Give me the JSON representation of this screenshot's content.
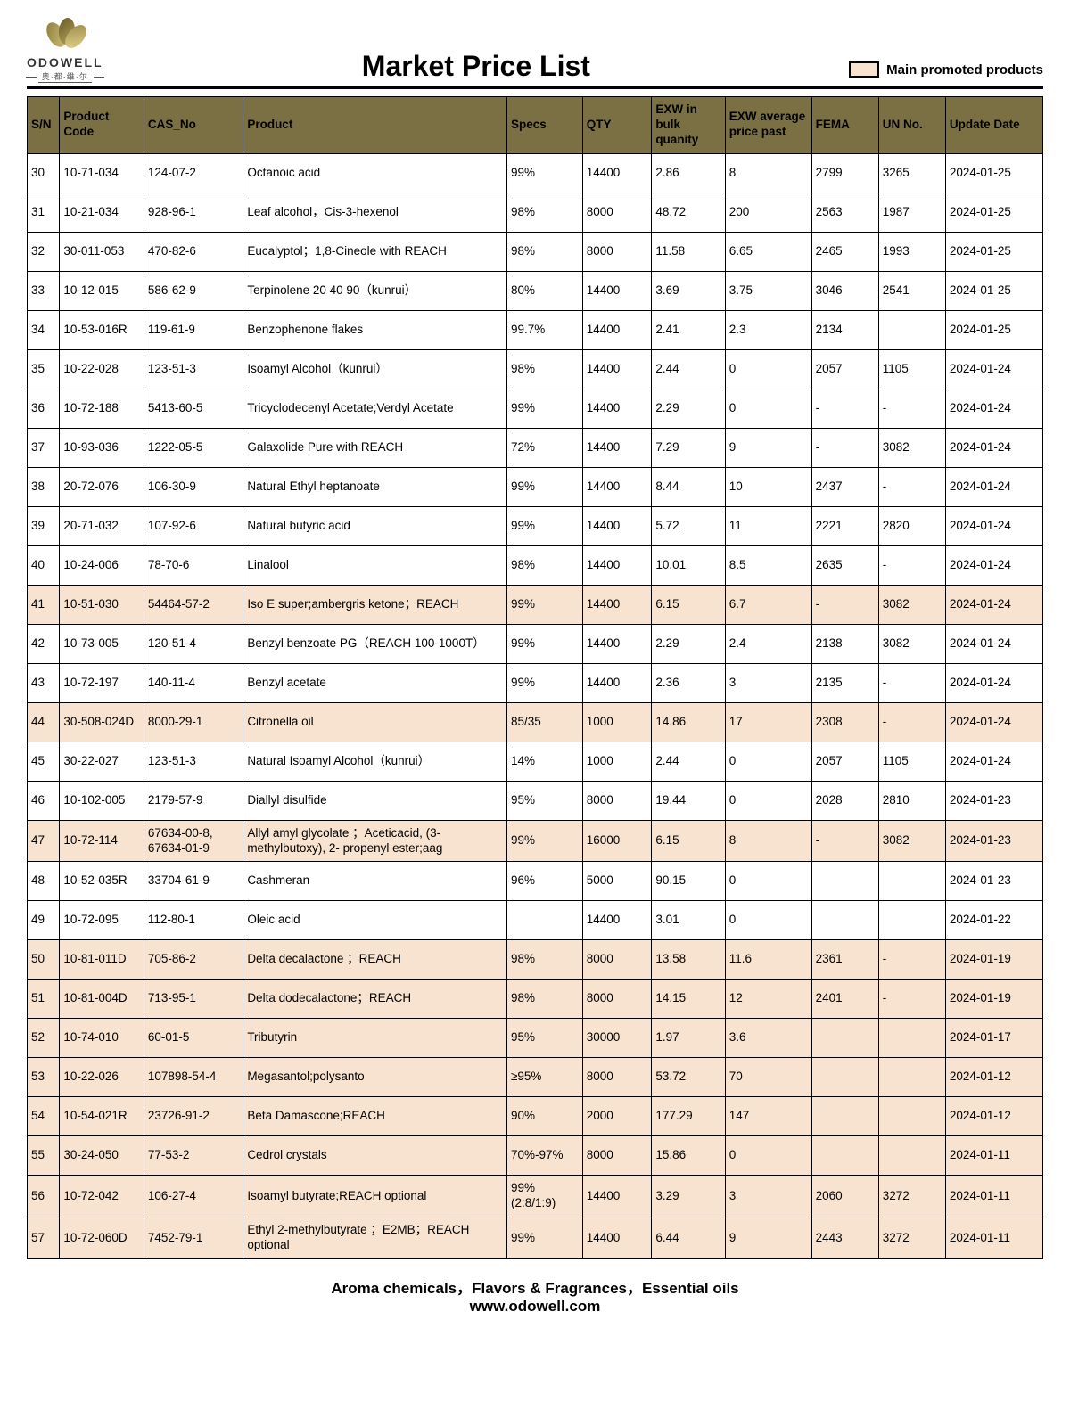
{
  "brand": {
    "name": "ODOWELL",
    "sub": "奥·都·维·尔"
  },
  "title": "Market Price List",
  "legend": "Main promoted products",
  "footer": {
    "line1": "Aroma chemicals，Flavors & Fragrances，Essential oils",
    "line2": "www.odowell.com"
  },
  "colors": {
    "header_bg": "#7a7043",
    "promoted_bg": "#f8e3d0",
    "border": "#000000"
  },
  "columns": [
    {
      "key": "sn",
      "label": "S/N",
      "width": "30"
    },
    {
      "key": "code",
      "label": "Product Code",
      "width": "78"
    },
    {
      "key": "cas",
      "label": "CAS_No",
      "width": "92"
    },
    {
      "key": "product",
      "label": "Product",
      "width": "244"
    },
    {
      "key": "specs",
      "label": "Specs",
      "width": "70"
    },
    {
      "key": "qty",
      "label": "QTY",
      "width": "64"
    },
    {
      "key": "exw_bulk",
      "label": "EXW in bulk quanity",
      "width": "68"
    },
    {
      "key": "exw_avg",
      "label": "EXW average price past",
      "width": "80"
    },
    {
      "key": "fema",
      "label": "FEMA",
      "width": "62"
    },
    {
      "key": "un",
      "label": "UN No.",
      "width": "62"
    },
    {
      "key": "date",
      "label": "Update Date",
      "width": "90"
    }
  ],
  "rows": [
    {
      "sn": "30",
      "code": "10-71-034",
      "cas": "124-07-2",
      "product": "Octanoic acid",
      "specs": "99%",
      "qty": "14400",
      "exw_bulk": "2.86",
      "exw_avg": "8",
      "fema": "2799",
      "un": "3265",
      "date": "2024-01-25",
      "promoted": false
    },
    {
      "sn": "31",
      "code": "10-21-034",
      "cas": "928-96-1",
      "product": "Leaf alcohol，Cis-3-hexenol",
      "specs": "98%",
      "qty": "8000",
      "exw_bulk": "48.72",
      "exw_avg": "200",
      "fema": "2563",
      "un": "1987",
      "date": "2024-01-25",
      "promoted": false
    },
    {
      "sn": "32",
      "code": "30-011-053",
      "cas": "470-82-6",
      "product": "Eucalyptol；1,8-Cineole with REACH",
      "specs": "98%",
      "qty": "8000",
      "exw_bulk": "11.58",
      "exw_avg": "6.65",
      "fema": "2465",
      "un": "1993",
      "date": "2024-01-25",
      "promoted": false
    },
    {
      "sn": "33",
      "code": "10-12-015",
      "cas": "586-62-9",
      "product": "Terpinolene 20 40 90（kunrui）",
      "specs": "80%",
      "qty": "14400",
      "exw_bulk": "3.69",
      "exw_avg": "3.75",
      "fema": "3046",
      "un": "2541",
      "date": "2024-01-25",
      "promoted": false
    },
    {
      "sn": "34",
      "code": "10-53-016R",
      "cas": "119-61-9",
      "product": "Benzophenone flakes",
      "specs": "99.7%",
      "qty": "14400",
      "exw_bulk": "2.41",
      "exw_avg": "2.3",
      "fema": "2134",
      "un": "",
      "date": "2024-01-25",
      "promoted": false
    },
    {
      "sn": "35",
      "code": "10-22-028",
      "cas": "123-51-3",
      "product": "Isoamyl Alcohol（kunrui）",
      "specs": "98%",
      "qty": "14400",
      "exw_bulk": "2.44",
      "exw_avg": "0",
      "fema": "2057",
      "un": "1105",
      "date": "2024-01-24",
      "promoted": false
    },
    {
      "sn": "36",
      "code": "10-72-188",
      "cas": "5413-60-5",
      "product": "Tricyclodecenyl Acetate;Verdyl Acetate",
      "specs": "99%",
      "qty": "14400",
      "exw_bulk": "2.29",
      "exw_avg": "0",
      "fema": "-",
      "un": "-",
      "date": "2024-01-24",
      "promoted": false
    },
    {
      "sn": "37",
      "code": "10-93-036",
      "cas": "1222-05-5",
      "product": "Galaxolide Pure with REACH",
      "specs": "72%",
      "qty": "14400",
      "exw_bulk": "7.29",
      "exw_avg": "9",
      "fema": "-",
      "un": "3082",
      "date": "2024-01-24",
      "promoted": false
    },
    {
      "sn": "38",
      "code": "20-72-076",
      "cas": "106-30-9",
      "product": "Natural Ethyl heptanoate",
      "specs": "99%",
      "qty": "14400",
      "exw_bulk": "8.44",
      "exw_avg": "10",
      "fema": "2437",
      "un": "-",
      "date": "2024-01-24",
      "promoted": false
    },
    {
      "sn": "39",
      "code": "20-71-032",
      "cas": "107-92-6",
      "product": "Natural butyric acid",
      "specs": "99%",
      "qty": "14400",
      "exw_bulk": "5.72",
      "exw_avg": "11",
      "fema": "2221",
      "un": "2820",
      "date": "2024-01-24",
      "promoted": false
    },
    {
      "sn": "40",
      "code": "10-24-006",
      "cas": "78-70-6",
      "product": "Linalool",
      "specs": "98%",
      "qty": "14400",
      "exw_bulk": "10.01",
      "exw_avg": "8.5",
      "fema": "2635",
      "un": "-",
      "date": "2024-01-24",
      "promoted": false
    },
    {
      "sn": "41",
      "code": "10-51-030",
      "cas": "54464-57-2",
      "product": "Iso E super;ambergris ketone；REACH",
      "specs": "99%",
      "qty": "14400",
      "exw_bulk": "6.15",
      "exw_avg": "6.7",
      "fema": "-",
      "un": "3082",
      "date": "2024-01-24",
      "promoted": true
    },
    {
      "sn": "42",
      "code": "10-73-005",
      "cas": "120-51-4",
      "product": "Benzyl benzoate PG（REACH 100-1000T）",
      "specs": "99%",
      "qty": "14400",
      "exw_bulk": "2.29",
      "exw_avg": "2.4",
      "fema": "2138",
      "un": "3082",
      "date": "2024-01-24",
      "promoted": false
    },
    {
      "sn": "43",
      "code": "10-72-197",
      "cas": "140-11-4",
      "product": "Benzyl acetate",
      "specs": "99%",
      "qty": "14400",
      "exw_bulk": "2.36",
      "exw_avg": "3",
      "fema": "2135",
      "un": "-",
      "date": "2024-01-24",
      "promoted": false
    },
    {
      "sn": "44",
      "code": "30-508-024D",
      "cas": "8000-29-1",
      "product": "Citronella oil",
      "specs": "85/35",
      "qty": "1000",
      "exw_bulk": "14.86",
      "exw_avg": "17",
      "fema": "2308",
      "un": "-",
      "date": "2024-01-24",
      "promoted": true
    },
    {
      "sn": "45",
      "code": "30-22-027",
      "cas": "123-51-3",
      "product": "Natural Isoamyl Alcohol（kunrui）",
      "specs": "14%",
      "qty": "1000",
      "exw_bulk": "2.44",
      "exw_avg": "0",
      "fema": "2057",
      "un": "1105",
      "date": "2024-01-24",
      "promoted": false
    },
    {
      "sn": "46",
      "code": "10-102-005",
      "cas": "2179-57-9",
      "product": "Diallyl disulfide",
      "specs": "95%",
      "qty": "8000",
      "exw_bulk": "19.44",
      "exw_avg": "0",
      "fema": "2028",
      "un": "2810",
      "date": "2024-01-23",
      "promoted": false
    },
    {
      "sn": "47",
      "code": "10-72-114",
      "cas": "67634-00-8, 67634-01-9",
      "product": "Allyl amyl glycolate ；Aceticacid, (3-methylbutoxy), 2- propenyl ester;aag",
      "specs": "99%",
      "qty": "16000",
      "exw_bulk": "6.15",
      "exw_avg": "8",
      "fema": "-",
      "un": "3082",
      "date": "2024-01-23",
      "promoted": true
    },
    {
      "sn": "48",
      "code": "10-52-035R",
      "cas": "33704-61-9",
      "product": "Cashmeran",
      "specs": "96%",
      "qty": "5000",
      "exw_bulk": "90.15",
      "exw_avg": "0",
      "fema": "",
      "un": "",
      "date": "2024-01-23",
      "promoted": false
    },
    {
      "sn": "49",
      "code": "10-72-095",
      "cas": "112-80-1",
      "product": "Oleic acid",
      "specs": "",
      "qty": "14400",
      "exw_bulk": "3.01",
      "exw_avg": "0",
      "fema": "",
      "un": "",
      "date": "2024-01-22",
      "promoted": false
    },
    {
      "sn": "50",
      "code": "10-81-011D",
      "cas": "705-86-2",
      "product": "Delta decalactone ；REACH",
      "specs": "98%",
      "qty": "8000",
      "exw_bulk": "13.58",
      "exw_avg": "11.6",
      "fema": "2361",
      "un": "-",
      "date": "2024-01-19",
      "promoted": true
    },
    {
      "sn": "51",
      "code": "10-81-004D",
      "cas": "713-95-1",
      "product": "Delta dodecalactone；REACH",
      "specs": "98%",
      "qty": "8000",
      "exw_bulk": "14.15",
      "exw_avg": "12",
      "fema": "2401",
      "un": "-",
      "date": "2024-01-19",
      "promoted": true
    },
    {
      "sn": "52",
      "code": "10-74-010",
      "cas": "60-01-5",
      "product": "Tributyrin",
      "specs": "95%",
      "qty": "30000",
      "exw_bulk": "1.97",
      "exw_avg": "3.6",
      "fema": "",
      "un": "",
      "date": "2024-01-17",
      "promoted": true
    },
    {
      "sn": "53",
      "code": "10-22-026",
      "cas": "107898-54-4",
      "product": "Megasantol;polysanto",
      "specs": "≥95%",
      "qty": "8000",
      "exw_bulk": "53.72",
      "exw_avg": "70",
      "fema": "",
      "un": "",
      "date": "2024-01-12",
      "promoted": true
    },
    {
      "sn": "54",
      "code": "10-54-021R",
      "cas": "23726-91-2",
      "product": "Beta Damascone;REACH",
      "specs": "90%",
      "qty": "2000",
      "exw_bulk": "177.29",
      "exw_avg": "147",
      "fema": "",
      "un": "",
      "date": "2024-01-12",
      "promoted": true
    },
    {
      "sn": "55",
      "code": "30-24-050",
      "cas": "77-53-2",
      "product": "Cedrol crystals",
      "specs": "70%-97%",
      "qty": "8000",
      "exw_bulk": "15.86",
      "exw_avg": "0",
      "fema": "",
      "un": "",
      "date": "2024-01-11",
      "promoted": true
    },
    {
      "sn": "56",
      "code": "10-72-042",
      "cas": "106-27-4",
      "product": "Isoamyl butyrate;REACH optional",
      "specs": "99%(2:8/1:9)",
      "qty": "14400",
      "exw_bulk": "3.29",
      "exw_avg": "3",
      "fema": "2060",
      "un": "3272",
      "date": "2024-01-11",
      "promoted": true
    },
    {
      "sn": "57",
      "code": "10-72-060D",
      "cas": "7452-79-1",
      "product": "Ethyl 2-methylbutyrate ；E2MB；REACH optional",
      "specs": "99%",
      "qty": "14400",
      "exw_bulk": "6.44",
      "exw_avg": "9",
      "fema": "2443",
      "un": "3272",
      "date": "2024-01-11",
      "promoted": true
    }
  ]
}
